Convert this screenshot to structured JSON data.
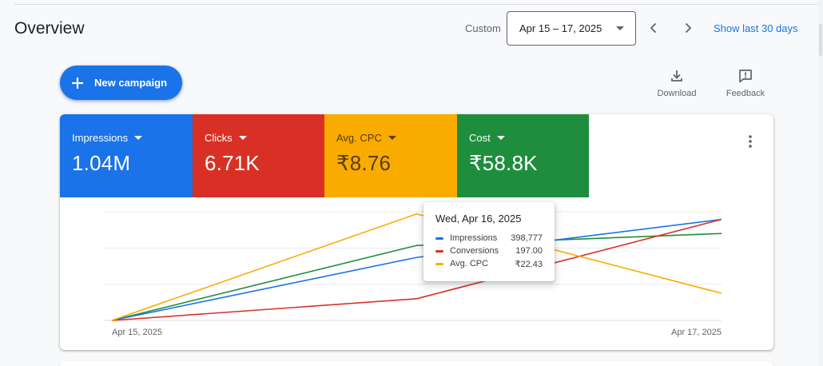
{
  "header": {
    "title": "Overview",
    "custom_label": "Custom",
    "date_range": "Apr 15 – 17, 2025",
    "show_last_label": "Show last 30 days",
    "prev_icon": "chevron-left-icon",
    "next_icon": "chevron-right-icon"
  },
  "toolbar": {
    "new_campaign_label": "New campaign",
    "download_label": "Download",
    "feedback_label": "Feedback"
  },
  "metrics": [
    {
      "label": "Impressions",
      "value": "1.04M",
      "color": "#1a73e8"
    },
    {
      "label": "Clicks",
      "value": "6.71K",
      "color": "#d93025"
    },
    {
      "label": "Avg. CPC",
      "value": "₹8.76",
      "color": "#f9ab00"
    },
    {
      "label": "Cost",
      "value": "₹58.8K",
      "color": "#1e8e3e"
    }
  ],
  "tooltip": {
    "title": "Wed, Apr 16, 2025",
    "rows": [
      {
        "name": "Impressions",
        "value": "398,777",
        "color": "#1a73e8"
      },
      {
        "name": "Conversions",
        "value": "197.00",
        "color": "#d93025"
      },
      {
        "name": "Avg. CPC",
        "value": "₹22.43",
        "color": "#f9ab00"
      }
    ]
  },
  "chart_data": {
    "type": "line",
    "x": [
      "Apr 15, 2025",
      "Apr 16, 2025",
      "Apr 17, 2025"
    ],
    "x_tick_labels": [
      "Apr 15, 2025",
      "Apr 17, 2025"
    ],
    "ylim": [
      0,
      1
    ],
    "grid": true,
    "series": [
      {
        "name": "Impressions",
        "color": "#1a73e8",
        "values": [
          0,
          0.58,
          0.93
        ]
      },
      {
        "name": "Conversions",
        "color": "#d93025",
        "values": [
          0,
          0.2,
          0.93
        ]
      },
      {
        "name": "Avg. CPC",
        "color": "#f9ab00",
        "values": [
          0,
          0.98,
          0.25
        ]
      },
      {
        "color": "#1e8e3e",
        "values": [
          0,
          0.69,
          0.8
        ]
      }
    ]
  }
}
